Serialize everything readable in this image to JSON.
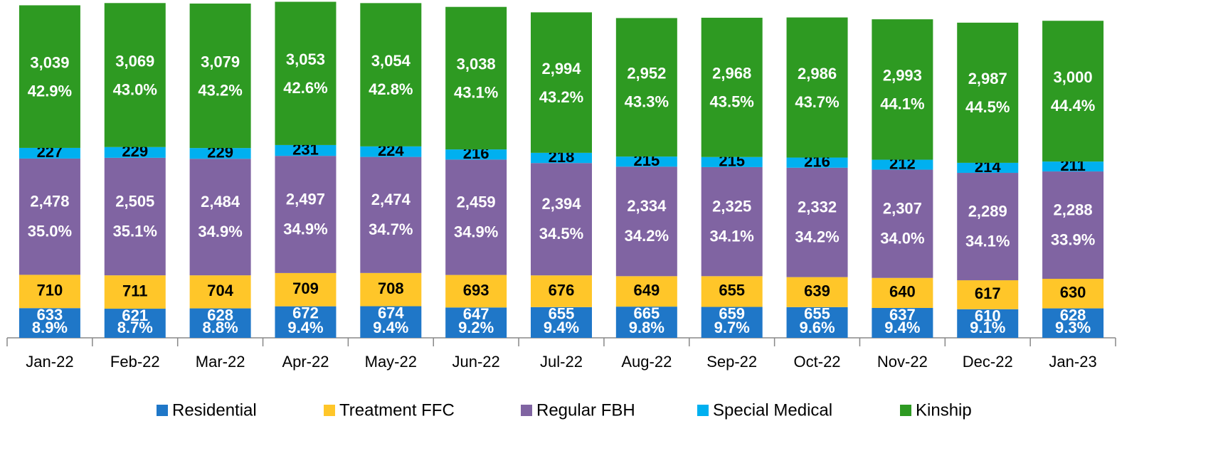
{
  "chart_data": {
    "type": "stacked-bar",
    "categories": [
      "Jan-22",
      "Feb-22",
      "Mar-22",
      "Apr-22",
      "May-22",
      "Jun-22",
      "Jul-22",
      "Aug-22",
      "Sep-22",
      "Oct-22",
      "Nov-22",
      "Dec-22",
      "Jan-23"
    ],
    "ylim": [
      0,
      7200
    ],
    "legend": "bottom",
    "series": [
      {
        "name": "Residential",
        "color": "#1F77C8",
        "label_color": "#ffffff",
        "values": [
          633,
          621,
          628,
          672,
          674,
          647,
          655,
          665,
          659,
          655,
          637,
          610,
          628
        ],
        "shares": [
          8.9,
          8.7,
          8.8,
          9.4,
          9.4,
          9.2,
          9.4,
          9.8,
          9.7,
          9.6,
          9.4,
          9.1,
          9.3
        ],
        "share_labels": [
          "8.9%",
          "8.7%",
          "8.8%",
          "9.4%",
          "9.4%",
          "9.2%",
          "9.4%",
          "9.8%",
          "9.7%",
          "9.6%",
          "9.4%",
          "9.1%",
          "9.3%"
        ]
      },
      {
        "name": "Treatment FFC",
        "color": "#FFC629",
        "label_color": "#000000",
        "values": [
          710,
          711,
          704,
          709,
          708,
          693,
          676,
          649,
          655,
          639,
          640,
          617,
          630
        ]
      },
      {
        "name": "Regular FBH",
        "color": "#8064A2",
        "label_color": "#ffffff",
        "values": [
          2478,
          2505,
          2484,
          2497,
          2474,
          2459,
          2394,
          2334,
          2325,
          2332,
          2307,
          2289,
          2288
        ],
        "value_labels": [
          "2,478",
          "2,505",
          "2,484",
          "2,497",
          "2,474",
          "2,459",
          "2,394",
          "2,334",
          "2,325",
          "2,332",
          "2,307",
          "2,289",
          "2,288"
        ],
        "shares": [
          35.0,
          35.1,
          34.9,
          34.9,
          34.7,
          34.9,
          34.5,
          34.2,
          34.1,
          34.2,
          34.0,
          34.1,
          33.9
        ],
        "share_labels": [
          "35.0%",
          "35.1%",
          "34.9%",
          "34.9%",
          "34.7%",
          "34.9%",
          "34.5%",
          "34.2%",
          "34.1%",
          "34.2%",
          "34.0%",
          "34.1%",
          "33.9%"
        ]
      },
      {
        "name": "Special Medical",
        "color": "#00B0F0",
        "label_color": "#000000",
        "values": [
          227,
          229,
          229,
          231,
          224,
          216,
          218,
          215,
          215,
          216,
          212,
          214,
          211
        ]
      },
      {
        "name": "Kinship",
        "color": "#2E9A22",
        "label_color": "#ffffff",
        "values": [
          3039,
          3069,
          3079,
          3053,
          3054,
          3038,
          2994,
          2952,
          2968,
          2986,
          2993,
          2987,
          3000
        ],
        "value_labels": [
          "3,039",
          "3,069",
          "3,079",
          "3,053",
          "3,054",
          "3,038",
          "2,994",
          "2,952",
          "2,968",
          "2,986",
          "2,993",
          "2,987",
          "3,000"
        ],
        "shares": [
          42.9,
          43.0,
          43.2,
          42.6,
          42.8,
          43.1,
          43.2,
          43.3,
          43.5,
          43.7,
          44.1,
          44.5,
          44.4
        ],
        "share_labels": [
          "42.9%",
          "43.0%",
          "43.2%",
          "42.6%",
          "42.8%",
          "43.1%",
          "43.2%",
          "43.3%",
          "43.5%",
          "43.7%",
          "44.1%",
          "44.5%",
          "44.4%"
        ]
      }
    ]
  }
}
